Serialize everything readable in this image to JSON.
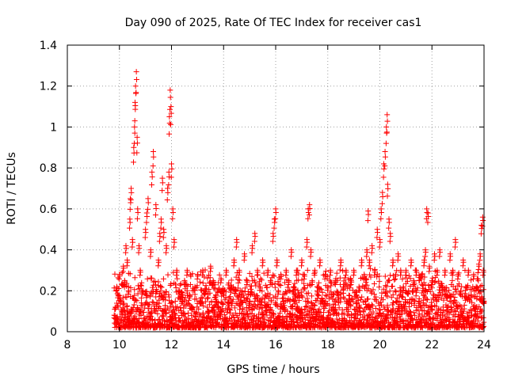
{
  "chart_data": {
    "type": "scatter",
    "title": "Day 090 of 2025, Rate Of TEC Index for receiver cas1",
    "xlabel": "GPS time / hours",
    "ylabel": "ROTI / TECUs",
    "xlim": [
      8,
      24
    ],
    "ylim": [
      0,
      1.4
    ],
    "grid": true,
    "marker": "+",
    "color": "#ff0000",
    "x_ticks": [
      8,
      10,
      12,
      14,
      16,
      18,
      20,
      22,
      24
    ],
    "x_tick_labels": [
      "8",
      "10",
      "12",
      "14",
      "16",
      "18",
      "20",
      "22",
      "24"
    ],
    "y_ticks": [
      0,
      0.2,
      0.4,
      0.6,
      0.8,
      1.0,
      1.2,
      1.4
    ],
    "y_tick_labels": [
      "0",
      "0.2",
      "0.4",
      "0.6",
      "0.8",
      "1",
      "1.2",
      "1.4"
    ],
    "series": [
      {
        "name": "ROTI cas1",
        "points": [
          [
            9.85,
            0.12
          ],
          [
            9.9,
            0.22
          ],
          [
            9.95,
            0.18
          ],
          [
            10.0,
            0.28
          ],
          [
            10.05,
            0.15
          ],
          [
            10.1,
            0.1
          ],
          [
            10.15,
            0.32
          ],
          [
            10.2,
            0.25
          ],
          [
            10.25,
            0.42
          ],
          [
            10.3,
            0.35
          ],
          [
            10.35,
            0.2
          ],
          [
            10.4,
            0.55
          ],
          [
            10.42,
            0.65
          ],
          [
            10.45,
            0.7
          ],
          [
            10.5,
            0.45
          ],
          [
            10.55,
            0.9
          ],
          [
            10.58,
            1.0
          ],
          [
            10.6,
            1.12
          ],
          [
            10.62,
            1.2
          ],
          [
            10.65,
            1.27
          ],
          [
            10.68,
            0.95
          ],
          [
            10.7,
            0.6
          ],
          [
            10.75,
            0.42
          ],
          [
            10.8,
            0.3
          ],
          [
            10.9,
            0.2
          ],
          [
            11.0,
            0.5
          ],
          [
            11.05,
            0.58
          ],
          [
            11.1,
            0.65
          ],
          [
            11.2,
            0.4
          ],
          [
            11.25,
            0.78
          ],
          [
            11.3,
            0.88
          ],
          [
            11.4,
            0.62
          ],
          [
            11.5,
            0.35
          ],
          [
            11.55,
            0.48
          ],
          [
            11.6,
            0.55
          ],
          [
            11.65,
            0.75
          ],
          [
            11.7,
            0.5
          ],
          [
            11.8,
            0.42
          ],
          [
            11.85,
            0.7
          ],
          [
            11.9,
            0.78
          ],
          [
            11.92,
            1.05
          ],
          [
            11.95,
            1.18
          ],
          [
            11.98,
            1.1
          ],
          [
            12.0,
            0.82
          ],
          [
            12.05,
            0.6
          ],
          [
            12.1,
            0.45
          ],
          [
            12.2,
            0.3
          ],
          [
            12.3,
            0.2
          ],
          [
            12.4,
            0.15
          ],
          [
            12.5,
            0.25
          ],
          [
            12.6,
            0.3
          ],
          [
            12.7,
            0.18
          ],
          [
            12.8,
            0.12
          ],
          [
            12.9,
            0.22
          ],
          [
            13.0,
            0.28
          ],
          [
            13.1,
            0.15
          ],
          [
            13.2,
            0.3
          ],
          [
            13.3,
            0.2
          ],
          [
            13.4,
            0.1
          ],
          [
            13.5,
            0.32
          ],
          [
            13.6,
            0.25
          ],
          [
            13.7,
            0.18
          ],
          [
            13.8,
            0.12
          ],
          [
            13.9,
            0.26
          ],
          [
            14.0,
            0.2
          ],
          [
            14.1,
            0.3
          ],
          [
            14.2,
            0.14
          ],
          [
            14.3,
            0.22
          ],
          [
            14.4,
            0.35
          ],
          [
            14.5,
            0.45
          ],
          [
            14.6,
            0.3
          ],
          [
            14.7,
            0.2
          ],
          [
            14.8,
            0.38
          ],
          [
            14.9,
            0.25
          ],
          [
            15.0,
            0.15
          ],
          [
            15.1,
            0.42
          ],
          [
            15.2,
            0.48
          ],
          [
            15.3,
            0.3
          ],
          [
            15.4,
            0.22
          ],
          [
            15.5,
            0.35
          ],
          [
            15.6,
            0.18
          ],
          [
            15.7,
            0.3
          ],
          [
            15.8,
            0.25
          ],
          [
            15.9,
            0.48
          ],
          [
            15.95,
            0.55
          ],
          [
            16.0,
            0.6
          ],
          [
            16.05,
            0.35
          ],
          [
            16.1,
            0.2
          ],
          [
            16.2,
            0.28
          ],
          [
            16.3,
            0.15
          ],
          [
            16.4,
            0.3
          ],
          [
            16.5,
            0.25
          ],
          [
            16.6,
            0.4
          ],
          [
            16.7,
            0.22
          ],
          [
            16.8,
            0.3
          ],
          [
            16.9,
            0.18
          ],
          [
            17.0,
            0.35
          ],
          [
            17.1,
            0.28
          ],
          [
            17.2,
            0.45
          ],
          [
            17.25,
            0.6
          ],
          [
            17.3,
            0.62
          ],
          [
            17.35,
            0.4
          ],
          [
            17.4,
            0.25
          ],
          [
            17.5,
            0.3
          ],
          [
            17.6,
            0.2
          ],
          [
            17.7,
            0.35
          ],
          [
            17.8,
            0.15
          ],
          [
            17.9,
            0.28
          ],
          [
            18.0,
            0.22
          ],
          [
            18.1,
            0.3
          ],
          [
            18.2,
            0.12
          ],
          [
            18.3,
            0.25
          ],
          [
            18.4,
            0.18
          ],
          [
            18.5,
            0.35
          ],
          [
            18.6,
            0.22
          ],
          [
            18.7,
            0.3
          ],
          [
            18.8,
            0.15
          ],
          [
            18.9,
            0.25
          ],
          [
            19.0,
            0.3
          ],
          [
            19.1,
            0.18
          ],
          [
            19.2,
            0.22
          ],
          [
            19.3,
            0.35
          ],
          [
            19.4,
            0.28
          ],
          [
            19.5,
            0.4
          ],
          [
            19.55,
            0.59
          ],
          [
            19.6,
            0.35
          ],
          [
            19.7,
            0.42
          ],
          [
            19.8,
            0.3
          ],
          [
            19.9,
            0.5
          ],
          [
            20.0,
            0.45
          ],
          [
            20.05,
            0.6
          ],
          [
            20.1,
            0.68
          ],
          [
            20.15,
            0.82
          ],
          [
            20.2,
            0.88
          ],
          [
            20.25,
            1.0
          ],
          [
            20.28,
            1.06
          ],
          [
            20.3,
            0.72
          ],
          [
            20.35,
            0.55
          ],
          [
            20.4,
            0.48
          ],
          [
            20.5,
            0.35
          ],
          [
            20.6,
            0.28
          ],
          [
            20.7,
            0.38
          ],
          [
            20.8,
            0.3
          ],
          [
            20.9,
            0.22
          ],
          [
            21.0,
            0.3
          ],
          [
            21.1,
            0.2
          ],
          [
            21.2,
            0.35
          ],
          [
            21.3,
            0.25
          ],
          [
            21.4,
            0.3
          ],
          [
            21.5,
            0.15
          ],
          [
            21.6,
            0.28
          ],
          [
            21.7,
            0.35
          ],
          [
            21.75,
            0.4
          ],
          [
            21.8,
            0.6
          ],
          [
            21.85,
            0.58
          ],
          [
            21.9,
            0.32
          ],
          [
            22.0,
            0.25
          ],
          [
            22.1,
            0.38
          ],
          [
            22.2,
            0.3
          ],
          [
            22.3,
            0.4
          ],
          [
            22.4,
            0.22
          ],
          [
            22.5,
            0.3
          ],
          [
            22.6,
            0.18
          ],
          [
            22.7,
            0.38
          ],
          [
            22.8,
            0.3
          ],
          [
            22.9,
            0.45
          ],
          [
            23.0,
            0.28
          ],
          [
            23.1,
            0.2
          ],
          [
            23.2,
            0.35
          ],
          [
            23.3,
            0.22
          ],
          [
            23.4,
            0.3
          ],
          [
            23.5,
            0.18
          ],
          [
            23.6,
            0.28
          ],
          [
            23.7,
            0.22
          ],
          [
            23.8,
            0.33
          ],
          [
            23.85,
            0.38
          ],
          [
            23.9,
            0.52
          ],
          [
            23.95,
            0.56
          ],
          [
            23.97,
            0.3
          ],
          [
            23.99,
            0.15
          ]
        ],
        "baseline_band": {
          "x_range": [
            9.8,
            24.0
          ],
          "y_range": [
            0.02,
            0.32
          ]
        }
      }
    ]
  }
}
